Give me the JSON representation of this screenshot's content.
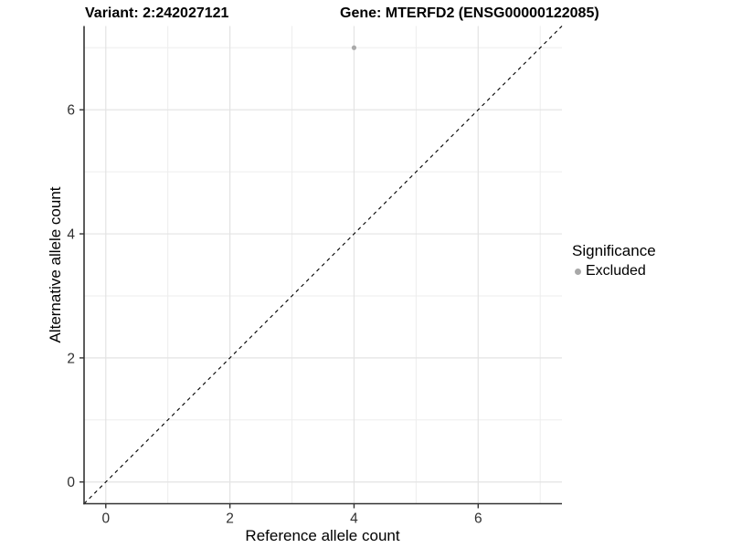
{
  "title": {
    "variant": "Variant: 2:242027121",
    "gene": "Gene: MTERFD2 (ENSG00000122085)"
  },
  "chart_data": {
    "type": "scatter",
    "title": "Variant: 2:242027121    Gene: MTERFD2 (ENSG00000122085)",
    "xlabel": "Reference allele count",
    "ylabel": "Alternative allele count",
    "xlim": [
      -0.35,
      7.35
    ],
    "ylim": [
      -0.35,
      7.35
    ],
    "x_ticks": [
      0,
      2,
      4,
      6
    ],
    "x_tick_labels": [
      "0",
      "2",
      "4",
      "6"
    ],
    "y_ticks": [
      0,
      2,
      4,
      6
    ],
    "y_tick_labels": [
      "0",
      "2",
      "4",
      "6"
    ],
    "x_minor_ticks": [
      1,
      3,
      5,
      7
    ],
    "y_minor_ticks": [
      1,
      3,
      5,
      7
    ],
    "grid": "major+minor",
    "points": [
      {
        "x": 4,
        "y": 7,
        "series": "Excluded"
      }
    ],
    "series": [
      {
        "name": "Excluded",
        "color": "#aaaaaa"
      }
    ],
    "reference_line": {
      "kind": "identity y=x",
      "style": "dashed",
      "color": "#000000"
    },
    "legend": {
      "title": "Significance",
      "position": "right",
      "items": [
        {
          "label": "Excluded",
          "marker": "circle",
          "color": "#a8a8a8"
        }
      ]
    }
  },
  "colors": {
    "background": "#ffffff",
    "grid_major": "#e3e3e3",
    "grid_minor": "#ededed",
    "axis": "#333333",
    "tick_label": "#303030",
    "point": "#aaaaaa",
    "text": "#000000"
  }
}
